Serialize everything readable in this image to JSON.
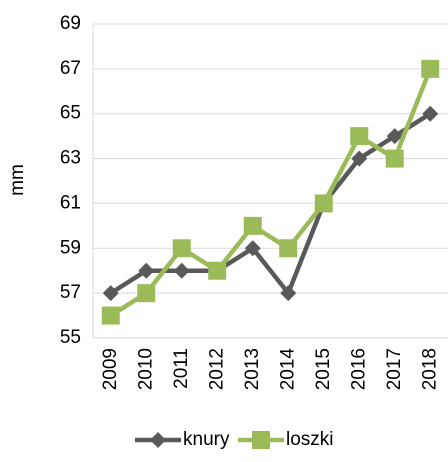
{
  "chart_data": {
    "type": "line",
    "y_label": "mm",
    "categories": [
      "2009",
      "2010",
      "2011",
      "2012",
      "2013",
      "2014",
      "2015",
      "2016",
      "2017",
      "2018"
    ],
    "series": [
      {
        "name": "knury",
        "color": "#595959",
        "marker": "diamond",
        "values": [
          57,
          58,
          58,
          58,
          59,
          57,
          61,
          63,
          64,
          65
        ]
      },
      {
        "name": "loszki",
        "color": "#9bbb59",
        "marker": "square",
        "values": [
          56,
          57,
          59,
          58,
          60,
          59,
          61,
          64,
          63,
          67
        ]
      }
    ],
    "ylim": [
      55,
      69
    ],
    "yticks": [
      55,
      57,
      59,
      61,
      63,
      65,
      67,
      69
    ],
    "grid": true,
    "legend": "bottom"
  }
}
